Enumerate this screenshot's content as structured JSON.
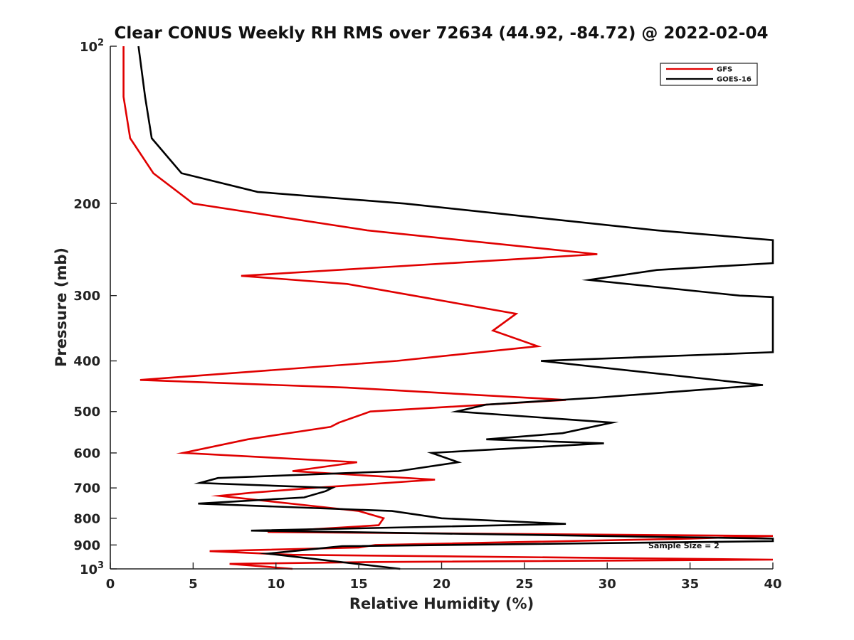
{
  "chart_data": {
    "type": "line",
    "title": "Clear CONUS Weekly RH RMS over 72634 (44.92, -84.72) @ 2022-02-04",
    "xlabel": "Relative Humidity (%)",
    "ylabel": "Pressure (mb)",
    "xlim": [
      0,
      40
    ],
    "ylim": [
      100,
      1000
    ],
    "yscale": "log",
    "y_reversed": true,
    "grid": false,
    "legend_position": "top-right",
    "x_ticks": [
      "0",
      "5",
      "10",
      "15",
      "20",
      "25",
      "30",
      "35",
      "40"
    ],
    "y_ticks": [
      {
        "value": 100,
        "base": "10",
        "exp": "2"
      },
      {
        "value": 200,
        "label": "200"
      },
      {
        "value": 300,
        "label": "300"
      },
      {
        "value": 400,
        "label": "400"
      },
      {
        "value": 500,
        "label": "500"
      },
      {
        "value": 600,
        "label": "600"
      },
      {
        "value": 700,
        "label": "700"
      },
      {
        "value": 800,
        "label": "800"
      },
      {
        "value": 900,
        "label": "900"
      },
      {
        "value": 1000,
        "base": "10",
        "exp": "3"
      }
    ],
    "annotation": "Sample Size = 2",
    "series": [
      {
        "name": "GFS",
        "color": "#e00000",
        "points": [
          [
            0.8,
            100
          ],
          [
            0.8,
            125
          ],
          [
            1.2,
            150
          ],
          [
            2.6,
            175
          ],
          [
            5.0,
            200
          ],
          [
            15.5,
            225
          ],
          [
            29.4,
            250
          ],
          [
            7.9,
            275
          ],
          [
            14.3,
            285
          ],
          [
            18.3,
            300
          ],
          [
            24.5,
            325
          ],
          [
            23.1,
            350
          ],
          [
            25.8,
            375
          ],
          [
            17.3,
            400
          ],
          [
            1.8,
            435
          ],
          [
            14.3,
            450
          ],
          [
            27.5,
            475
          ],
          [
            15.7,
            500
          ],
          [
            13.8,
            525
          ],
          [
            13.3,
            535
          ],
          [
            8.3,
            565
          ],
          [
            4.4,
            600
          ],
          [
            14.9,
            625
          ],
          [
            11.0,
            650
          ],
          [
            19.6,
            675
          ],
          [
            12.3,
            700
          ],
          [
            8.5,
            715
          ],
          [
            6.6,
            725
          ],
          [
            15.0,
            775
          ],
          [
            16.5,
            800
          ],
          [
            16.2,
            825
          ],
          [
            9.5,
            850
          ],
          [
            40.0,
            865
          ],
          [
            35.0,
            875
          ],
          [
            16.0,
            900
          ],
          [
            15.0,
            910
          ],
          [
            6.0,
            925
          ],
          [
            11.0,
            940
          ],
          [
            40.0,
            960
          ],
          [
            16.0,
            970
          ],
          [
            7.2,
            978
          ],
          [
            8.5,
            985
          ],
          [
            11.0,
            1000
          ]
        ]
      },
      {
        "name": "GOES-16",
        "color": "#000000",
        "points": [
          [
            1.7,
            100
          ],
          [
            2.1,
            125
          ],
          [
            2.5,
            150
          ],
          [
            4.3,
            175
          ],
          [
            8.9,
            190
          ],
          [
            17.8,
            200
          ],
          [
            33.0,
            225
          ],
          [
            40.0,
            235
          ],
          [
            40.0,
            260
          ],
          [
            33.0,
            268
          ],
          [
            28.9,
            280
          ],
          [
            38.0,
            300
          ],
          [
            40.0,
            302
          ],
          [
            40.0,
            385
          ],
          [
            26.0,
            400
          ],
          [
            39.4,
            445
          ],
          [
            29.5,
            470
          ],
          [
            22.7,
            485
          ],
          [
            20.9,
            500
          ],
          [
            30.3,
            525
          ],
          [
            27.3,
            550
          ],
          [
            22.7,
            565
          ],
          [
            29.8,
            575
          ],
          [
            19.4,
            600
          ],
          [
            21.0,
            625
          ],
          [
            17.4,
            650
          ],
          [
            6.5,
            670
          ],
          [
            5.4,
            685
          ],
          [
            13.4,
            700
          ],
          [
            13.0,
            710
          ],
          [
            11.7,
            730
          ],
          [
            5.3,
            750
          ],
          [
            17.0,
            775
          ],
          [
            20.0,
            800
          ],
          [
            27.5,
            820
          ],
          [
            8.5,
            845
          ],
          [
            40.0,
            875
          ],
          [
            40.0,
            885
          ],
          [
            14.0,
            905
          ],
          [
            9.5,
            935
          ],
          [
            17.5,
            1000
          ]
        ]
      }
    ]
  }
}
